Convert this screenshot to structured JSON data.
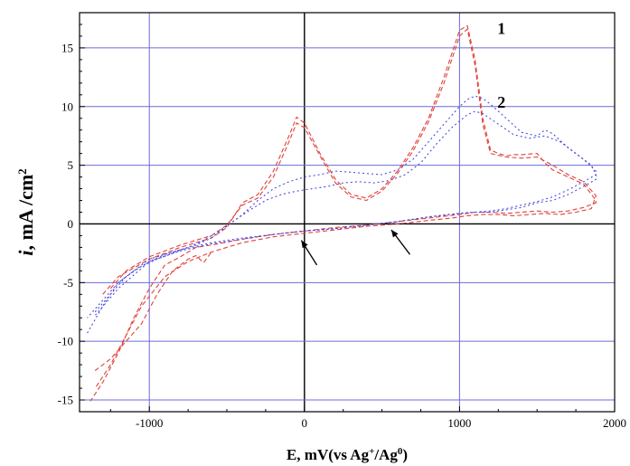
{
  "chart_data": {
    "type": "line",
    "xlabel": {
      "main": "E, mV(vs Ag",
      "sup1": "+",
      "mid": "/Ag",
      "sup2": "0",
      "end": ")"
    },
    "ylabel": {
      "italic": "i",
      "rest": ", mA /cm",
      "sup": "2"
    },
    "xlim": [
      -1450,
      2000
    ],
    "ylim": [
      -16,
      18
    ],
    "x_ticks": [
      -1000,
      0,
      1000,
      2000
    ],
    "x_tick_labels": [
      "-1000",
      "0",
      "1000",
      "2000"
    ],
    "y_ticks": [
      -15,
      -10,
      -5,
      0,
      5,
      10,
      15
    ],
    "y_tick_labels": [
      "-15",
      "-10",
      "-5",
      "0",
      "5",
      "10",
      "15"
    ],
    "grid": true,
    "grid_color": "#6b6bdc",
    "zero_line_color": "#000000",
    "curve_labels": [
      {
        "text": "1",
        "x": 1270,
        "y": 16.2
      },
      {
        "text": "2",
        "x": 1270,
        "y": 9.9
      }
    ],
    "arrows": [
      {
        "x1": 80,
        "y1": -3.5,
        "x2": -20,
        "y2": -1.4
      },
      {
        "x1": 680,
        "y1": -2.6,
        "x2": 560,
        "y2": -0.5
      }
    ],
    "series": [
      {
        "color": "#e0413a",
        "dash": "5,3",
        "x": [
          -1300,
          -1200,
          -1000,
          -800,
          -600,
          -500,
          -400,
          -300,
          -200,
          -100,
          -50,
          0,
          100,
          200,
          300,
          400,
          500,
          600,
          700,
          800,
          900,
          1000,
          1050,
          1100,
          1150,
          1200,
          1250,
          1300,
          1350,
          1400,
          1500,
          1550,
          1600,
          1700,
          1800,
          1880,
          1880,
          1800,
          1700,
          1600,
          1500,
          1400,
          1300,
          1200,
          1100,
          1000,
          800,
          600,
          400,
          200,
          0,
          -200,
          -400,
          -600,
          -700,
          -800,
          -900,
          -1000,
          -1100,
          -1200,
          -1300,
          -1380
        ],
        "y": [
          -6.0,
          -4.5,
          -3.0,
          -2.0,
          -1.2,
          -0.3,
          1.8,
          2.5,
          4.5,
          7.5,
          9.1,
          8.6,
          6.0,
          3.8,
          2.5,
          2.2,
          3.0,
          4.5,
          6.5,
          9.0,
          12.5,
          16.5,
          16.9,
          14.0,
          9.0,
          6.3,
          6.0,
          5.8,
          5.9,
          5.9,
          6.0,
          5.2,
          4.6,
          4.0,
          3.4,
          2.0,
          1.8,
          1.4,
          1.1,
          1.0,
          1.1,
          1.0,
          0.9,
          1.0,
          1.0,
          0.8,
          0.5,
          0.2,
          -0.1,
          -0.3,
          -0.6,
          -0.9,
          -1.3,
          -1.8,
          -2.0,
          -2.8,
          -3.5,
          -5.5,
          -8.0,
          -11.0,
          -13.5,
          -15.1
        ]
      },
      {
        "color": "#e0413a",
        "dash": "5,3",
        "x": [
          -1250,
          -1150,
          -1000,
          -800,
          -600,
          -500,
          -400,
          -300,
          -200,
          -100,
          -50,
          0,
          100,
          200,
          300,
          400,
          500,
          600,
          700,
          800,
          900,
          1000,
          1050,
          1100,
          1150,
          1200,
          1300,
          1400,
          1500,
          1600,
          1700,
          1800,
          1880,
          1850,
          1750,
          1650,
          1550,
          1450,
          1350,
          1250,
          1150,
          1050,
          950,
          800,
          600,
          400,
          200,
          0,
          -200,
          -400,
          -600,
          -750,
          -900,
          -1050,
          -1150,
          -1250,
          -1350
        ],
        "y": [
          -5.5,
          -4.0,
          -2.8,
          -1.8,
          -1.0,
          -0.1,
          1.6,
          2.2,
          4.0,
          7.0,
          8.6,
          8.2,
          5.8,
          3.5,
          2.3,
          2.0,
          2.8,
          4.3,
          6.2,
          8.7,
          12.0,
          16.0,
          16.6,
          13.5,
          8.5,
          6.0,
          5.7,
          5.6,
          5.7,
          5.0,
          4.2,
          3.6,
          2.4,
          1.3,
          1.0,
          0.8,
          0.9,
          0.8,
          0.7,
          0.8,
          0.8,
          0.7,
          0.5,
          0.3,
          0.0,
          -0.2,
          -0.5,
          -0.8,
          -1.1,
          -1.6,
          -2.4,
          -3.2,
          -4.5,
          -7.0,
          -9.5,
          -12.0,
          -14.0
        ]
      },
      {
        "color": "#e0413a",
        "dash": "5,3",
        "x": [
          -1350,
          -1250,
          -1150,
          -1050,
          -950,
          -850,
          -750,
          -700,
          -650,
          -600
        ],
        "y": [
          -12.5,
          -11.5,
          -10.0,
          -8.5,
          -6.0,
          -4.0,
          -3.0,
          -2.7,
          -3.3,
          -2.4
        ]
      },
      {
        "color": "#4a4ae0",
        "dash": "2,3",
        "x": [
          -1400,
          -1300,
          -1200,
          -1100,
          -1000,
          -900,
          -800,
          -700,
          -600,
          -500,
          -400,
          -300,
          -200,
          -100,
          0,
          100,
          200,
          300,
          400,
          500,
          600,
          700,
          800,
          900,
          1000,
          1050,
          1100,
          1150,
          1200,
          1300,
          1400,
          1500,
          1550,
          1600,
          1700,
          1800,
          1880,
          1880,
          1800,
          1700,
          1600,
          1500,
          1400,
          1300,
          1200,
          1100,
          1000,
          800,
          600,
          400,
          200,
          0,
          -200,
          -400,
          -600,
          -800,
          -1000,
          -1200,
          -1400
        ],
        "y": [
          -9.3,
          -7.0,
          -5.0,
          -4.0,
          -3.2,
          -2.6,
          -2.2,
          -1.8,
          -1.2,
          -0.2,
          0.8,
          2.0,
          3.0,
          3.6,
          4.0,
          4.2,
          4.5,
          4.4,
          4.3,
          4.2,
          4.6,
          5.5,
          7.0,
          8.5,
          10.0,
          10.6,
          10.9,
          10.7,
          10.2,
          9.0,
          7.8,
          7.5,
          8.0,
          7.7,
          6.5,
          5.5,
          4.5,
          3.8,
          3.2,
          2.5,
          2.0,
          1.8,
          1.4,
          1.2,
          1.0,
          1.0,
          0.9,
          0.6,
          0.2,
          -0.1,
          -0.4,
          -0.6,
          -0.9,
          -1.2,
          -1.6,
          -2.2,
          -3.0,
          -5.0,
          -8.0
        ]
      },
      {
        "color": "#4a4ae0",
        "dash": "2,3",
        "x": [
          -1350,
          -1250,
          -1150,
          -1050,
          -950,
          -850,
          -750,
          -650,
          -550,
          -450,
          -350,
          -250,
          -150,
          -50,
          50,
          150,
          250,
          350,
          450,
          550,
          650,
          750,
          850,
          950,
          1050,
          1100,
          1150,
          1250,
          1350,
          1450,
          1550,
          1650,
          1750,
          1850,
          1880,
          1800,
          1700,
          1600,
          1500,
          1400,
          1300,
          1200,
          1100,
          1000,
          800,
          600,
          400,
          200,
          0,
          -200,
          -400,
          -600,
          -800,
          -1000,
          -1200,
          -1350
        ],
        "y": [
          -7.5,
          -6.0,
          -4.5,
          -3.6,
          -3.0,
          -2.5,
          -2.0,
          -1.4,
          -0.6,
          0.3,
          1.2,
          2.0,
          2.5,
          2.8,
          3.0,
          3.2,
          3.5,
          3.6,
          3.5,
          3.7,
          4.2,
          5.2,
          6.8,
          8.2,
          9.3,
          9.6,
          9.4,
          8.5,
          7.6,
          7.3,
          7.5,
          7.0,
          6.0,
          5.0,
          4.2,
          3.6,
          2.9,
          2.3,
          1.9,
          1.6,
          1.3,
          1.1,
          1.0,
          0.9,
          0.6,
          0.2,
          -0.1,
          -0.4,
          -0.6,
          -0.9,
          -1.3,
          -1.7,
          -2.3,
          -3.2,
          -5.5,
          -7.8
        ]
      }
    ]
  }
}
